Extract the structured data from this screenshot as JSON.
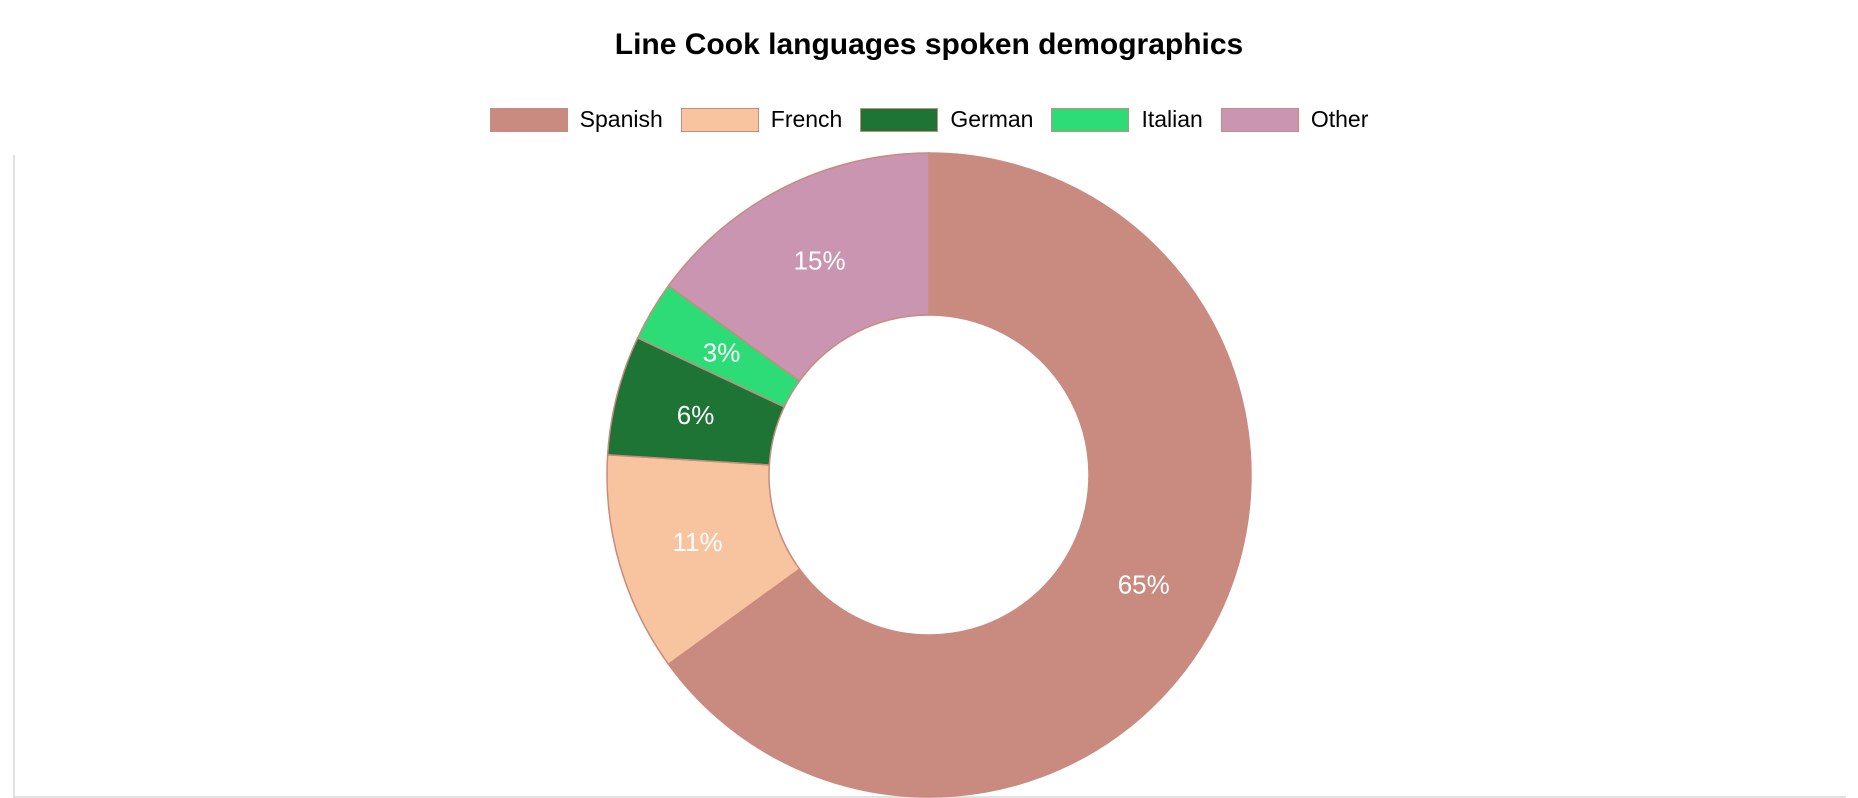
{
  "chart_data": {
    "type": "pie",
    "donut": true,
    "title": "Line Cook languages spoken demographics",
    "legend_position": "top",
    "slices": [
      {
        "label": "Spanish",
        "value": 65,
        "display": "65%",
        "color": "#c98a80"
      },
      {
        "label": "French",
        "value": 11,
        "display": "11%",
        "color": "#f8c39f"
      },
      {
        "label": "German",
        "value": 6,
        "display": "6%",
        "color": "#1d7435"
      },
      {
        "label": "Italian",
        "value": 3,
        "display": "3%",
        "color": "#2ddc76"
      },
      {
        "label": "Other",
        "value": 15,
        "display": "15%",
        "color": "#c995b0"
      }
    ],
    "slice_border_color": "#c98a80",
    "label_color": "#ffffff",
    "grid": false
  }
}
